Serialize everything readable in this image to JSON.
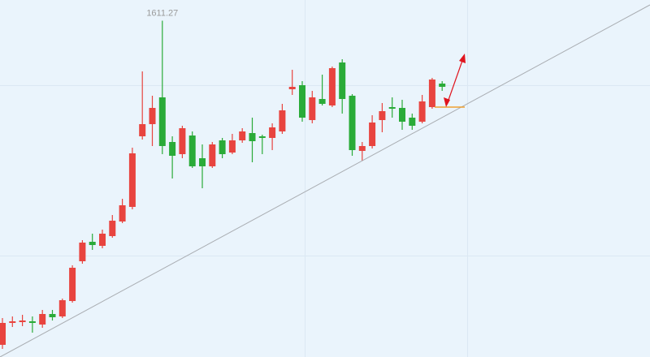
{
  "chart_data": {
    "type": "candlestick",
    "open": [
      1411.5,
      1425,
      1425.5,
      1426,
      1424,
      1430.5,
      1429,
      1438.5,
      1463,
      1475,
      1472.5,
      1478.5,
      1487.5,
      1496.5,
      1540,
      1547.5,
      1564,
      1536.5,
      1529,
      1540.5,
      1526.5,
      1521.5,
      1537.5,
      1530,
      1537.5,
      1542,
      1540,
      1539,
      1543,
      1569,
      1571.5,
      1550,
      1563,
      1559,
      1585.5,
      1565,
      1531,
      1534,
      1550,
      1558,
      1557.5,
      1551.5,
      1549,
      1558,
      1572.5
    ],
    "high": [
      1428,
      1429,
      1430,
      1429,
      1433,
      1433,
      1440,
      1460.5,
      1476,
      1480,
      1482.5,
      1491.5,
      1501.5,
      1533,
      1580,
      1565,
      1611.27,
      1540,
      1546.5,
      1543,
      1535,
      1536.5,
      1539,
      1541.5,
      1545,
      1551.5,
      1541,
      1548,
      1560,
      1581,
      1574,
      1568,
      1578,
      1583,
      1587.5,
      1566,
      1536.5,
      1553,
      1560.5,
      1564,
      1562.5,
      1554,
      1565.5,
      1576,
      1574
    ],
    "low": [
      1409,
      1422.5,
      1423,
      1419,
      1422,
      1426.5,
      1428,
      1437.5,
      1461.5,
      1470,
      1471,
      1477.5,
      1486.5,
      1495,
      1538,
      1534,
      1529,
      1514,
      1526.5,
      1520.5,
      1508,
      1520.5,
      1526.5,
      1529,
      1536,
      1524,
      1529,
      1531.5,
      1541.5,
      1565.5,
      1549,
      1548,
      1559,
      1558,
      1554,
      1528,
      1525,
      1532.5,
      1542.5,
      1551.5,
      1544,
      1544,
      1548,
      1557,
      1568
    ],
    "close": [
      1425,
      1426,
      1426.5,
      1425,
      1430.5,
      1428.5,
      1439,
      1459,
      1474.5,
      1473,
      1480,
      1488,
      1497.5,
      1529.5,
      1547.5,
      1557.5,
      1534,
      1528,
      1545,
      1521.5,
      1521.5,
      1535,
      1529,
      1537.5,
      1543,
      1537,
      1539,
      1545.5,
      1556,
      1570.5,
      1551.5,
      1564,
      1560,
      1582,
      1563,
      1531.5,
      1534,
      1548.5,
      1555.5,
      1557,
      1549,
      1546.5,
      1561.5,
      1575,
      1570.5
    ],
    "colors": {
      "up": "#e8443f",
      "down": "#2aab38"
    },
    "ylim": [
      1404,
      1624
    ]
  }
}
